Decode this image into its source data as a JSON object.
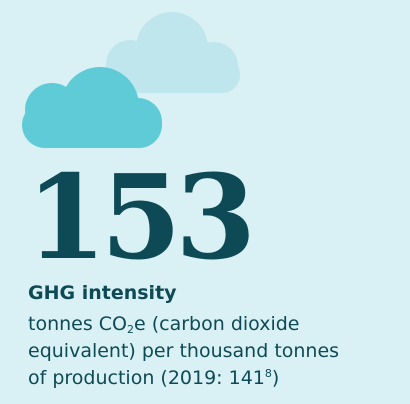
{
  "stat": {
    "value": "153",
    "label": "GHG intensity",
    "description": {
      "line1": {
        "pre": "tonnes CO",
        "sub": "2",
        "post": "e (carbon dioxide"
      },
      "line2": "equivalent) per thousand tonnes",
      "line3": {
        "pre": "of production (2019: 141",
        "sup": "8",
        "post": ")"
      }
    }
  }
}
